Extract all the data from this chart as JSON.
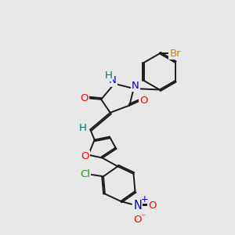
{
  "bg_color": "#e8e8e8",
  "bond_color": "#1a1a1a",
  "atom_colors": {
    "N": "#0000cc",
    "O": "#ff0000",
    "Br": "#cc8800",
    "Cl": "#00aa00",
    "H": "#007777",
    "C": "#1a1a1a"
  },
  "font_size": 9.5,
  "lw": 1.4
}
